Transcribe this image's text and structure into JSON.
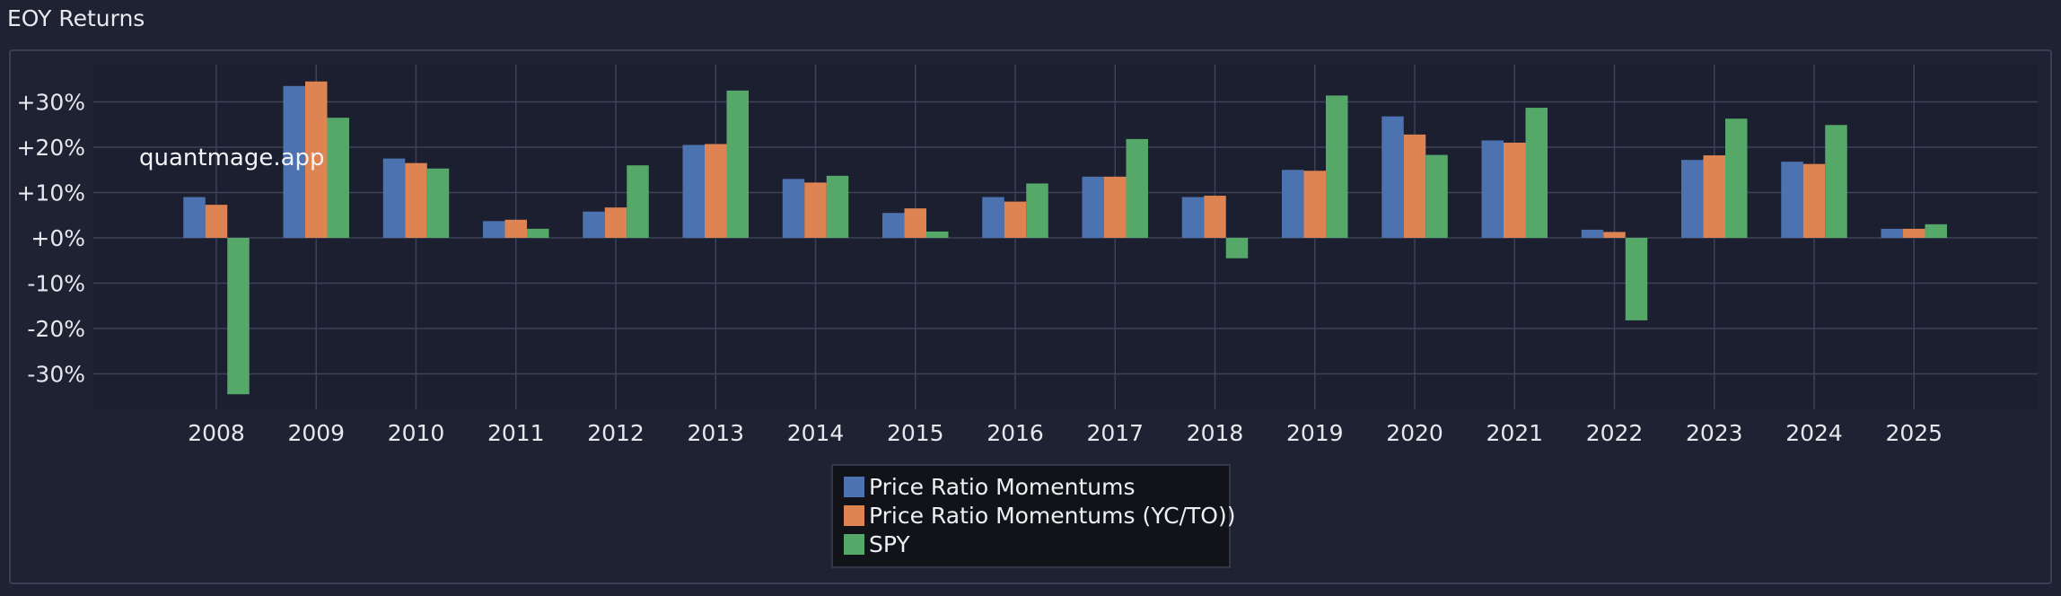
{
  "header": {
    "title": "EOY Returns"
  },
  "watermark": "quantmage.app",
  "chart_data": {
    "type": "bar",
    "categories": [
      "2008",
      "2009",
      "2010",
      "2011",
      "2012",
      "2013",
      "2014",
      "2015",
      "2016",
      "2017",
      "2018",
      "2019",
      "2020",
      "2021",
      "2022",
      "2023",
      "2024",
      "2025"
    ],
    "series": [
      {
        "name": "Price Ratio Momentums",
        "color": "#4c72b0",
        "values": [
          9.0,
          33.5,
          17.5,
          3.7,
          5.8,
          20.5,
          13.0,
          5.5,
          9.0,
          13.5,
          9.0,
          15.0,
          26.8,
          21.5,
          1.8,
          17.2,
          16.8,
          2.0
        ]
      },
      {
        "name": "Price Ratio Momentums (YC/TO))",
        "color": "#dd8452",
        "values": [
          7.3,
          34.5,
          16.5,
          4.0,
          6.7,
          20.7,
          12.2,
          6.5,
          8.0,
          13.5,
          9.3,
          14.8,
          22.8,
          21.0,
          1.3,
          18.2,
          16.3,
          2.0
        ]
      },
      {
        "name": "SPY",
        "color": "#55a868",
        "values": [
          -34.5,
          26.5,
          15.3,
          2.0,
          16.0,
          32.5,
          13.7,
          1.4,
          12.0,
          21.8,
          -4.5,
          31.4,
          18.3,
          28.7,
          -18.2,
          26.3,
          24.9,
          3.0
        ]
      }
    ],
    "yticks": [
      -30,
      -20,
      -10,
      0,
      10,
      20,
      30
    ],
    "ytick_labels": [
      "-30%",
      "-20%",
      "-10%",
      "+0%",
      "+10%",
      "+20%",
      "+30%"
    ],
    "ylim": [
      -38,
      38
    ],
    "grid": true,
    "legend_position": "bottom-center"
  }
}
